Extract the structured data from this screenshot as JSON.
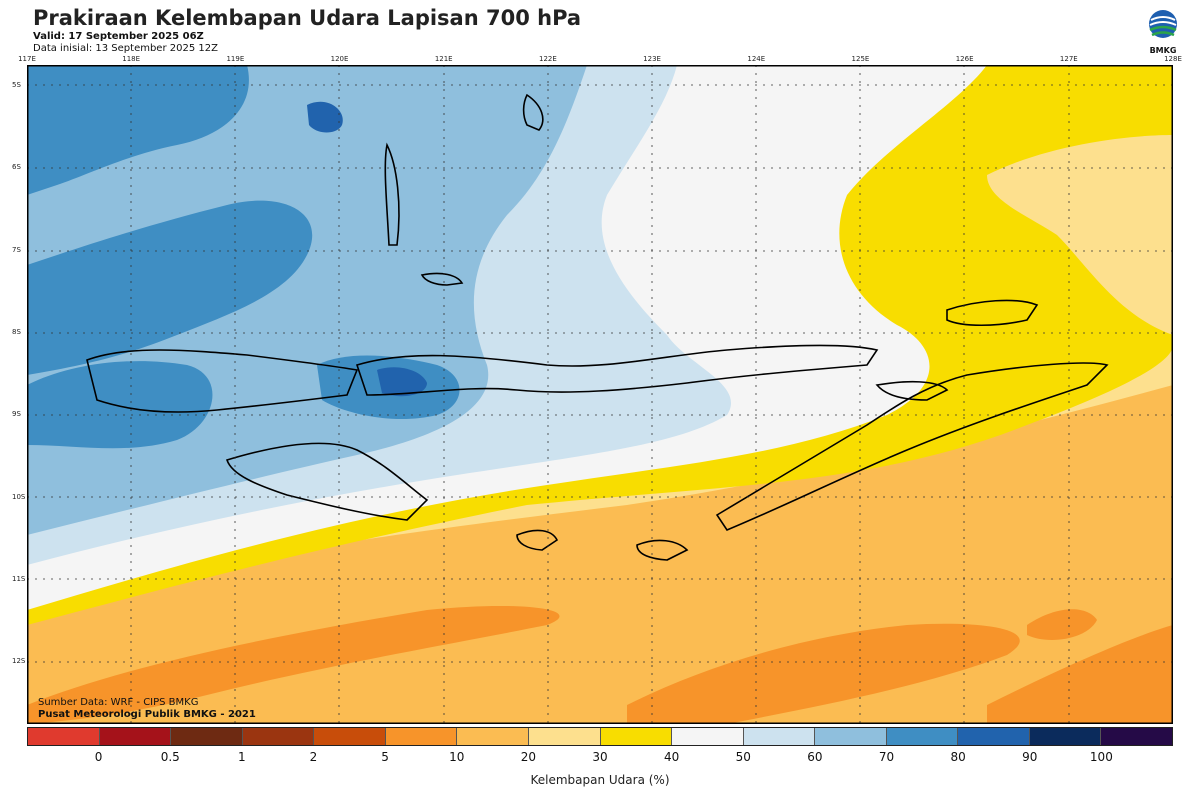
{
  "header": {
    "title": "Prakiraan Kelembapan Udara Lapisan 700 hPa",
    "valid": "Valid: 17 September 2025 06Z",
    "initial": "Data inisial: 13 September 2025 12Z"
  },
  "logo": {
    "text": "BMKG",
    "icon": "bmkg-logo-icon"
  },
  "axes": {
    "x_ticks": [
      "117E",
      "118E",
      "119E",
      "120E",
      "121E",
      "122E",
      "123E",
      "124E",
      "125E",
      "126E",
      "127E",
      "128E"
    ],
    "y_ticks": [
      "5S",
      "6S",
      "7S",
      "8S",
      "9S",
      "10S",
      "11S",
      "12S"
    ]
  },
  "credits": {
    "source": "Sumber Data: WRF - CIPS BMKG",
    "producer": "Pusat Meteorologi Publik BMKG - 2021"
  },
  "colorbar": {
    "title": "Kelembapan Udara (%)",
    "labels": [
      "0",
      "0.5",
      "1",
      "2",
      "5",
      "10",
      "20",
      "30",
      "40",
      "50",
      "60",
      "70",
      "80",
      "90",
      "100"
    ],
    "colors": [
      "#e03a2e",
      "#a5121a",
      "#6e2a12",
      "#9b3510",
      "#c84d0a",
      "#f7942a",
      "#fbbc52",
      "#fde08e",
      "#f8dd00",
      "#f5f5f5",
      "#cde2ef",
      "#8fbfdd",
      "#3f8ec3",
      "#2163ad",
      "#0b2b5c",
      "#250a47"
    ]
  },
  "map": {
    "colors": {
      "light_blue": "#cde2ef",
      "mid_blue": "#8fbfdd",
      "blue": "#3f8ec3",
      "dark_blue": "#2163ad",
      "white": "#f5f5f5",
      "yellow": "#f8dd00",
      "light_orange": "#fde08e",
      "orange": "#fbbc52",
      "dark_orange": "#f7942a"
    }
  }
}
